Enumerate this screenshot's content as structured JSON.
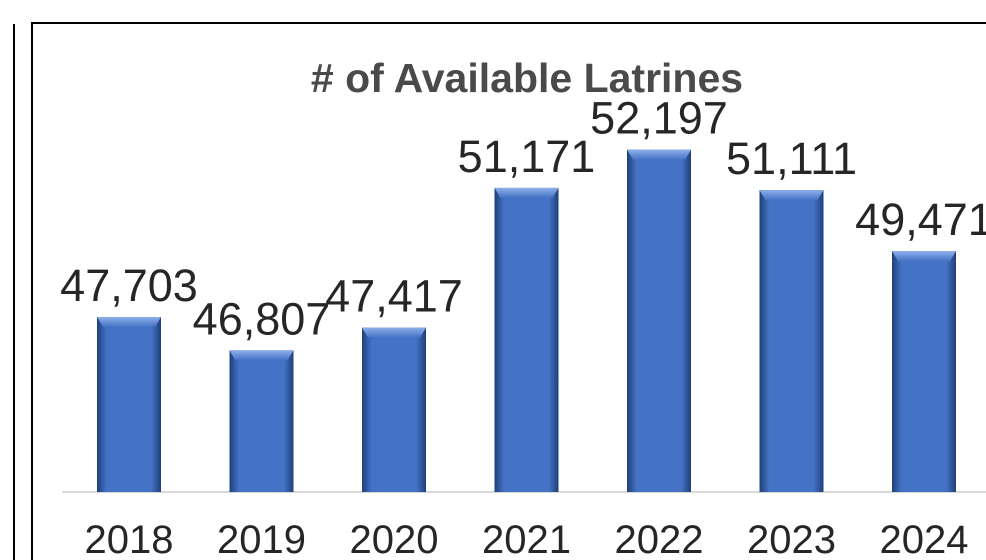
{
  "chart_data": {
    "type": "bar",
    "title": "# of Available Latrines",
    "xlabel": "",
    "ylabel": "",
    "categories": [
      "2018",
      "2019",
      "2020",
      "2021",
      "2022",
      "2023",
      "2024"
    ],
    "values": [
      47703,
      46807,
      47417,
      51171,
      52197,
      51111,
      49471
    ],
    "value_labels": [
      "47,703",
      "46,807",
      "47,417",
      "51,171",
      "52,197",
      "51,111",
      "49,471"
    ],
    "ylim": [
      43000,
      54500
    ],
    "grid": false,
    "legend": "none",
    "bar_color": "#4472c4",
    "bar_highlight": "#8eb0ea",
    "bar_shadow": "#1f3f7a",
    "baseline_color": "#d9d9d9",
    "border_color": "#000000"
  }
}
